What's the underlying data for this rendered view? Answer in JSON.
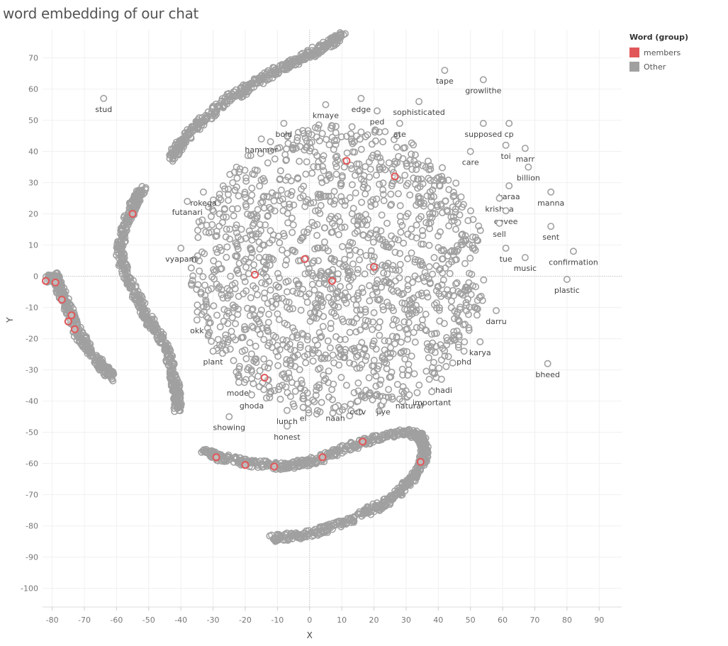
{
  "chart_data": {
    "type": "scatter",
    "title": "word embedding of our chat",
    "xlabel": "X",
    "ylabel": "Y",
    "xlim": [
      -83,
      97
    ],
    "ylim": [
      -106,
      79
    ],
    "x_ticks": [
      -80,
      -70,
      -60,
      -50,
      -40,
      -30,
      -20,
      -10,
      0,
      10,
      20,
      30,
      40,
      50,
      60,
      70,
      80,
      90
    ],
    "y_ticks": [
      70,
      60,
      50,
      40,
      30,
      20,
      10,
      0,
      -10,
      -20,
      -30,
      -40,
      -50,
      -60,
      -70,
      -80,
      -90,
      -100
    ],
    "grid": true,
    "zero_lines": true,
    "legend": {
      "title": "Word (group)",
      "placement": "top-right",
      "entries": [
        {
          "name": "members",
          "color": "#E15759"
        },
        {
          "name": "Other",
          "color": "#A0A0A0"
        }
      ]
    },
    "series": [
      {
        "name": "members",
        "color": "#E15759",
        "points": [
          [
            -82,
            -1.5
          ],
          [
            -79,
            -2
          ],
          [
            -77,
            -7.5
          ],
          [
            -74,
            -12.5
          ],
          [
            -75,
            -14.5
          ],
          [
            -73,
            -17
          ],
          [
            -55,
            20
          ],
          [
            -17,
            0.5
          ],
          [
            -1.5,
            5.5
          ],
          [
            7,
            -1.5
          ],
          [
            20,
            3
          ],
          [
            11.5,
            37
          ],
          [
            26.5,
            32
          ],
          [
            -14,
            -32.5
          ],
          [
            -29,
            -58
          ],
          [
            -20,
            -60.5
          ],
          [
            -11,
            -61
          ],
          [
            4,
            -58
          ],
          [
            16.5,
            -53
          ],
          [
            34.5,
            -59.5
          ]
        ]
      },
      {
        "name": "Other",
        "color": "#A0A0A0",
        "labeled_points": [
          {
            "word": "stud",
            "x": -64,
            "y": 57
          },
          {
            "word": "tape",
            "x": 42,
            "y": 66
          },
          {
            "word": "growlithe",
            "x": 54,
            "y": 63
          },
          {
            "word": "edge",
            "x": 16,
            "y": 57
          },
          {
            "word": "kmaye",
            "x": 5,
            "y": 55
          },
          {
            "word": "ped",
            "x": 21,
            "y": 53
          },
          {
            "word": "sophisticated",
            "x": 34,
            "y": 56
          },
          {
            "word": "bold",
            "x": -8,
            "y": 49
          },
          {
            "word": "ate",
            "x": 28,
            "y": 49
          },
          {
            "word": "hammer",
            "x": -15,
            "y": 44
          },
          {
            "word": "supposed",
            "x": 54,
            "y": 49
          },
          {
            "word": "cp",
            "x": 62,
            "y": 49
          },
          {
            "word": "toi",
            "x": 61,
            "y": 42
          },
          {
            "word": "marr",
            "x": 67,
            "y": 41
          },
          {
            "word": "care",
            "x": 50,
            "y": 40
          },
          {
            "word": "billion",
            "x": 68,
            "y": 35
          },
          {
            "word": "rokega",
            "x": -33,
            "y": 27
          },
          {
            "word": "karaa",
            "x": 62,
            "y": 29
          },
          {
            "word": "futanari",
            "x": -38,
            "y": 24
          },
          {
            "word": "krishna",
            "x": 59,
            "y": 25
          },
          {
            "word": "manna",
            "x": 75,
            "y": 27
          },
          {
            "word": "eevee",
            "x": 61,
            "y": 21
          },
          {
            "word": "sell",
            "x": 59,
            "y": 17
          },
          {
            "word": "sent",
            "x": 75,
            "y": 16
          },
          {
            "word": "vyapam",
            "x": -40,
            "y": 9
          },
          {
            "word": "tue",
            "x": 61,
            "y": 9
          },
          {
            "word": "confirmation",
            "x": 82,
            "y": 8
          },
          {
            "word": "music",
            "x": 67,
            "y": 6
          },
          {
            "word": "plastic",
            "x": 80,
            "y": -1
          },
          {
            "word": "darru",
            "x": 58,
            "y": -11
          },
          {
            "word": "okk",
            "x": -35,
            "y": -14
          },
          {
            "word": "karya",
            "x": 53,
            "y": -21
          },
          {
            "word": "phd",
            "x": 48,
            "y": -24
          },
          {
            "word": "plant",
            "x": -30,
            "y": -24
          },
          {
            "word": "bheed",
            "x": 74,
            "y": -28
          },
          {
            "word": "model",
            "x": -22,
            "y": -34
          },
          {
            "word": "khadi",
            "x": 41,
            "y": -33
          },
          {
            "word": "important",
            "x": 38,
            "y": -37
          },
          {
            "word": "ghoda",
            "x": -18,
            "y": -38
          },
          {
            "word": "jiye",
            "x": 23,
            "y": -40
          },
          {
            "word": "natural",
            "x": 31,
            "y": -38
          },
          {
            "word": "lunch",
            "x": -7,
            "y": -43
          },
          {
            "word": "cctv",
            "x": 15,
            "y": -40
          },
          {
            "word": "el",
            "x": -2,
            "y": -42
          },
          {
            "word": "naah",
            "x": 8,
            "y": -42
          },
          {
            "word": "showing",
            "x": -25,
            "y": -45
          },
          {
            "word": "honest",
            "x": -7,
            "y": -48
          }
        ]
      }
    ]
  }
}
